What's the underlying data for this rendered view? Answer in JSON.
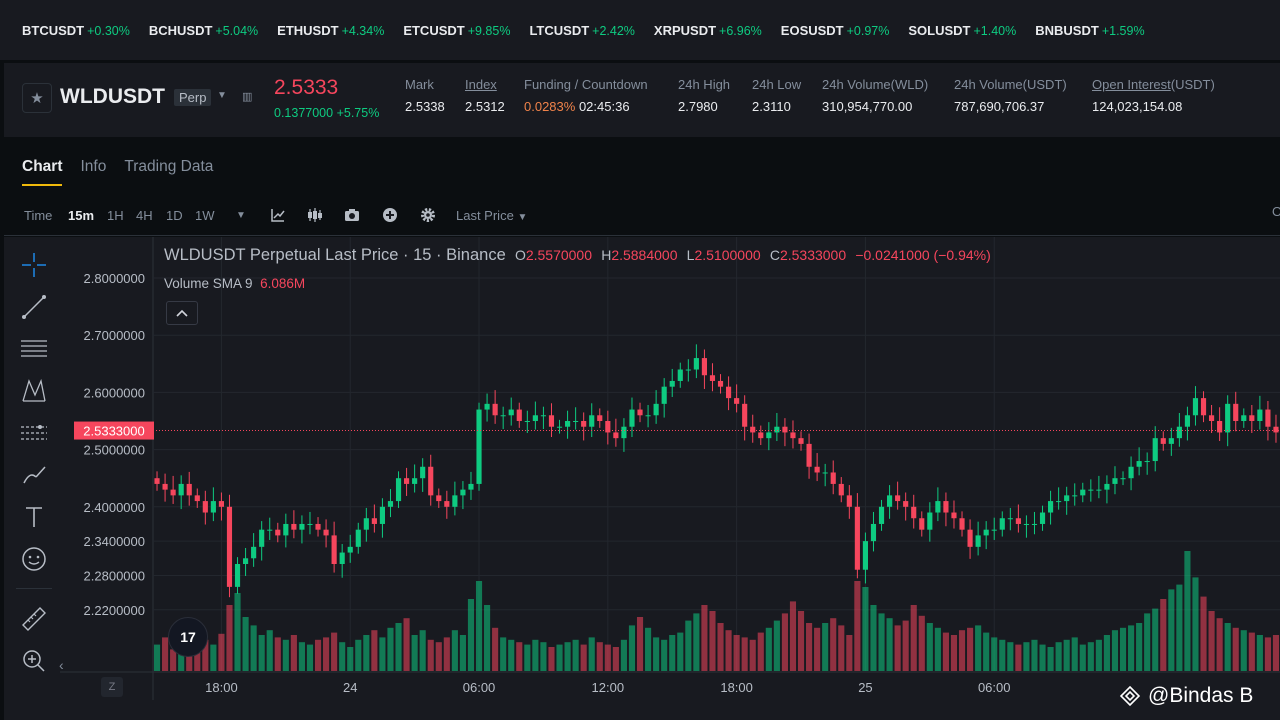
{
  "ticker": [
    {
      "symbol": "BTCUSDT",
      "change": "+0.30%"
    },
    {
      "symbol": "BCHUSDT",
      "change": "+5.04%"
    },
    {
      "symbol": "ETHUSDT",
      "change": "+4.34%"
    },
    {
      "symbol": "ETCUSDT",
      "change": "+9.85%"
    },
    {
      "symbol": "LTCUSDT",
      "change": "+2.42%"
    },
    {
      "symbol": "XRPUSDT",
      "change": "+6.96%"
    },
    {
      "symbol": "EOSUSDT",
      "change": "+0.97%"
    },
    {
      "symbol": "SOLUSDT",
      "change": "+1.40%"
    },
    {
      "symbol": "BNBUSDT",
      "change": "+1.59%"
    }
  ],
  "header": {
    "symbol": "WLDUSDT",
    "contract": "Perp",
    "last_price": "2.5333",
    "change_abs": "0.1377000",
    "change_pct": "+5.75%",
    "stats": {
      "mark_label": "Mark",
      "mark": "2.5338",
      "index_label": "Index",
      "index": "2.5312",
      "funding_label": "Funding / Countdown",
      "funding": "0.0283%",
      "countdown": "02:45:36",
      "high_label": "24h High",
      "high": "2.7980",
      "low_label": "24h Low",
      "low": "2.3110",
      "vol_wld_label": "24h Volume(WLD)",
      "vol_wld": "310,954,770.00",
      "vol_usdt_label": "24h Volume(USDT)",
      "vol_usdt": "787,690,706.37",
      "oi_label": "Open Interest",
      "oi_unit": "(USDT)",
      "oi": "124,023,154.08"
    }
  },
  "tabs": [
    "Chart",
    "Info",
    "Trading Data"
  ],
  "toolbar": {
    "time_label": "Time",
    "intervals": [
      "15m",
      "1H",
      "4H",
      "1D",
      "1W"
    ],
    "price_type": "Last Price",
    "edge_text": "O"
  },
  "legend": {
    "title": "WLDUSDT Perpetual Last Price · 15 · Binance",
    "o_key": "O",
    "o": "2.5570000",
    "h_key": "H",
    "h": "2.5884000",
    "l_key": "L",
    "l": "2.5100000",
    "c_key": "C",
    "c": "2.5333000",
    "change": "−0.0241000 (−0.94%)",
    "volume_label": "Volume SMA 9",
    "volume_value": "6.086M"
  },
  "colors": {
    "up": "#0ecb81",
    "down": "#f6465d",
    "accent": "#f0b90b",
    "bg": "#181a20"
  },
  "icons": [
    "star-icon",
    "chevron-down-icon",
    "candle-type-icon",
    "indicator-icon",
    "camera-icon",
    "plus-circle-icon",
    "gear-icon",
    "crosshair-icon",
    "trend-line-icon",
    "fib-icon",
    "pattern-icon",
    "projection-icon",
    "brush-icon",
    "text-icon",
    "emoji-icon",
    "ruler-icon",
    "zoom-in-icon"
  ],
  "price_axis_labels": [
    "2.8000000",
    "2.7000000",
    "2.6000000",
    "2.5000000",
    "2.4000000",
    "2.3400000",
    "2.2800000",
    "2.2200000"
  ],
  "current_price_label": "2.5333000",
  "time_axis_labels": [
    "18:00",
    "24",
    "06:00",
    "12:00",
    "18:00",
    "25",
    "06:00"
  ],
  "z_label": "Z",
  "tv_logo": "17",
  "watermark": "@Bindas B",
  "chart_data": {
    "type": "candlestick",
    "ylim": [
      2.19,
      2.83
    ],
    "price_ticks": [
      2.8,
      2.7,
      2.6,
      2.5,
      2.4,
      2.34,
      2.28,
      2.22
    ],
    "current_price": 2.5333,
    "candle_count": 140,
    "x_tick_candle_index": [
      8,
      24,
      40,
      56,
      72,
      88,
      104
    ],
    "close": [
      2.44,
      2.43,
      2.42,
      2.44,
      2.42,
      2.41,
      2.39,
      2.41,
      2.4,
      2.26,
      2.3,
      2.31,
      2.33,
      2.36,
      2.36,
      2.35,
      2.37,
      2.36,
      2.37,
      2.37,
      2.36,
      2.35,
      2.3,
      2.32,
      2.33,
      2.36,
      2.38,
      2.37,
      2.4,
      2.41,
      2.45,
      2.44,
      2.45,
      2.47,
      2.42,
      2.41,
      2.4,
      2.42,
      2.43,
      2.44,
      2.57,
      2.58,
      2.56,
      2.56,
      2.57,
      2.55,
      2.55,
      2.56,
      2.56,
      2.54,
      2.54,
      2.55,
      2.55,
      2.54,
      2.56,
      2.55,
      2.53,
      2.52,
      2.54,
      2.57,
      2.56,
      2.56,
      2.58,
      2.61,
      2.62,
      2.64,
      2.64,
      2.66,
      2.63,
      2.62,
      2.61,
      2.59,
      2.58,
      2.54,
      2.53,
      2.52,
      2.53,
      2.54,
      2.53,
      2.52,
      2.51,
      2.47,
      2.46,
      2.46,
      2.44,
      2.42,
      2.4,
      2.29,
      2.34,
      2.37,
      2.4,
      2.42,
      2.41,
      2.4,
      2.38,
      2.36,
      2.39,
      2.41,
      2.39,
      2.38,
      2.36,
      2.33,
      2.35,
      2.36,
      2.36,
      2.38,
      2.38,
      2.37,
      2.37,
      2.37,
      2.39,
      2.41,
      2.41,
      2.42,
      2.42,
      2.43,
      2.43,
      2.43,
      2.44,
      2.45,
      2.45,
      2.47,
      2.48,
      2.48,
      2.52,
      2.51,
      2.52,
      2.54,
      2.56,
      2.59,
      2.56,
      2.55,
      2.53,
      2.58,
      2.55,
      2.56,
      2.55,
      2.57,
      2.54,
      2.53
    ],
    "volume_pct": [
      22,
      28,
      18,
      20,
      30,
      24,
      26,
      22,
      31,
      55,
      65,
      45,
      38,
      30,
      34,
      28,
      26,
      30,
      24,
      22,
      26,
      28,
      32,
      24,
      20,
      26,
      30,
      34,
      28,
      36,
      40,
      44,
      30,
      34,
      26,
      24,
      28,
      34,
      30,
      60,
      75,
      55,
      36,
      28,
      26,
      24,
      22,
      26,
      24,
      20,
      22,
      24,
      26,
      22,
      28,
      24,
      22,
      20,
      26,
      38,
      45,
      36,
      28,
      26,
      30,
      32,
      42,
      48,
      55,
      50,
      40,
      34,
      30,
      28,
      26,
      32,
      36,
      42,
      48,
      58,
      50,
      40,
      36,
      40,
      44,
      38,
      30,
      75,
      70,
      55,
      48,
      44,
      38,
      42,
      55,
      46,
      40,
      36,
      32,
      30,
      34,
      36,
      38,
      32,
      28,
      26,
      24,
      22,
      24,
      26,
      22,
      20,
      24,
      26,
      28,
      22,
      24,
      26,
      30,
      34,
      36,
      38,
      40,
      48,
      52,
      60,
      68,
      72,
      100,
      78,
      62,
      50,
      44,
      40,
      36,
      34,
      32,
      30,
      28,
      30
    ]
  }
}
